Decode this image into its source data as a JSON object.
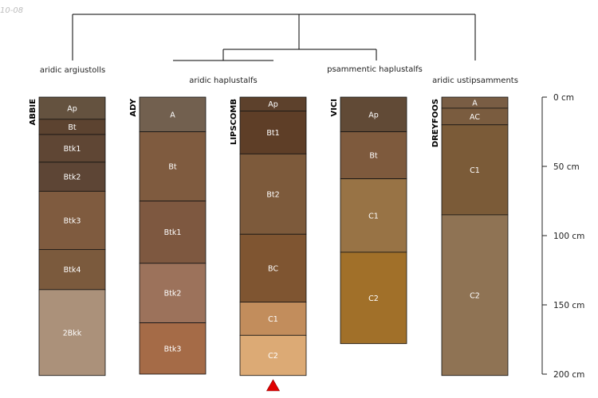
{
  "stamp": "10-08",
  "dendrogram": {
    "classes": [
      "aridic argiustolls",
      "aridic haplustalfs",
      "psammentic haplustalfs",
      "aridic ustipsamments"
    ]
  },
  "chart_data": {
    "type": "soil-profile-sketch",
    "depth_unit": "cm",
    "depth_ticks": [
      "0 cm",
      "50 cm",
      "100 cm",
      "150 cm",
      "200 cm"
    ],
    "depth_range": [
      0,
      200
    ],
    "marker": {
      "profile": "LIPSCOMB",
      "symbol": "red-triangle"
    },
    "profiles": [
      {
        "name": "ABBIE",
        "horizons": [
          {
            "name": "Ap",
            "top": 0,
            "bottom": 16,
            "color": "#64523f"
          },
          {
            "name": "Bt",
            "top": 16,
            "bottom": 27,
            "color": "#5c4330"
          },
          {
            "name": "Btk1",
            "top": 27,
            "bottom": 47,
            "color": "#5f4634"
          },
          {
            "name": "Btk2",
            "top": 47,
            "bottom": 68,
            "color": "#5d4535"
          },
          {
            "name": "Btk3",
            "top": 68,
            "bottom": 110,
            "color": "#7f5b3f"
          },
          {
            "name": "Btk4",
            "top": 110,
            "bottom": 139,
            "color": "#7b5a3d"
          },
          {
            "name": "2Bkk",
            "top": 139,
            "bottom": 201,
            "color": "#ab917a"
          }
        ]
      },
      {
        "name": "ADY",
        "horizons": [
          {
            "name": "A",
            "top": 0,
            "bottom": 25,
            "color": "#72604f"
          },
          {
            "name": "Bt",
            "top": 25,
            "bottom": 75,
            "color": "#7f5b3f"
          },
          {
            "name": "Btk1",
            "top": 75,
            "bottom": 120,
            "color": "#7e5840"
          },
          {
            "name": "Btk2",
            "top": 120,
            "bottom": 163,
            "color": "#9c725b"
          },
          {
            "name": "Btk3",
            "top": 163,
            "bottom": 200,
            "color": "#a56b47"
          }
        ]
      },
      {
        "name": "LIPSCOMB",
        "horizons": [
          {
            "name": "Ap",
            "top": 0,
            "bottom": 10,
            "color": "#5d412c"
          },
          {
            "name": "Bt1",
            "top": 10,
            "bottom": 41,
            "color": "#5e3e27"
          },
          {
            "name": "Bt2",
            "top": 41,
            "bottom": 99,
            "color": "#7d5a3b"
          },
          {
            "name": "BC",
            "top": 99,
            "bottom": 148,
            "color": "#7f5531"
          },
          {
            "name": "C1",
            "top": 148,
            "bottom": 172,
            "color": "#c28d5c"
          },
          {
            "name": "C2",
            "top": 172,
            "bottom": 201,
            "color": "#dcaa75"
          }
        ]
      },
      {
        "name": "VICI",
        "horizons": [
          {
            "name": "Ap",
            "top": 0,
            "bottom": 25,
            "color": "#614a36"
          },
          {
            "name": "Bt",
            "top": 25,
            "bottom": 59,
            "color": "#7e5a3d"
          },
          {
            "name": "C1",
            "top": 59,
            "bottom": 112,
            "color": "#987345"
          },
          {
            "name": "C2",
            "top": 112,
            "bottom": 178,
            "color": "#a17029"
          }
        ]
      },
      {
        "name": "DREYFOOS",
        "horizons": [
          {
            "name": "A",
            "top": 0,
            "bottom": 8,
            "color": "#795d44"
          },
          {
            "name": "AC",
            "top": 8,
            "bottom": 20,
            "color": "#7a5c3f"
          },
          {
            "name": "C1",
            "top": 20,
            "bottom": 85,
            "color": "#7b5b38"
          },
          {
            "name": "C2",
            "top": 85,
            "bottom": 201,
            "color": "#8f7354"
          }
        ]
      }
    ]
  }
}
